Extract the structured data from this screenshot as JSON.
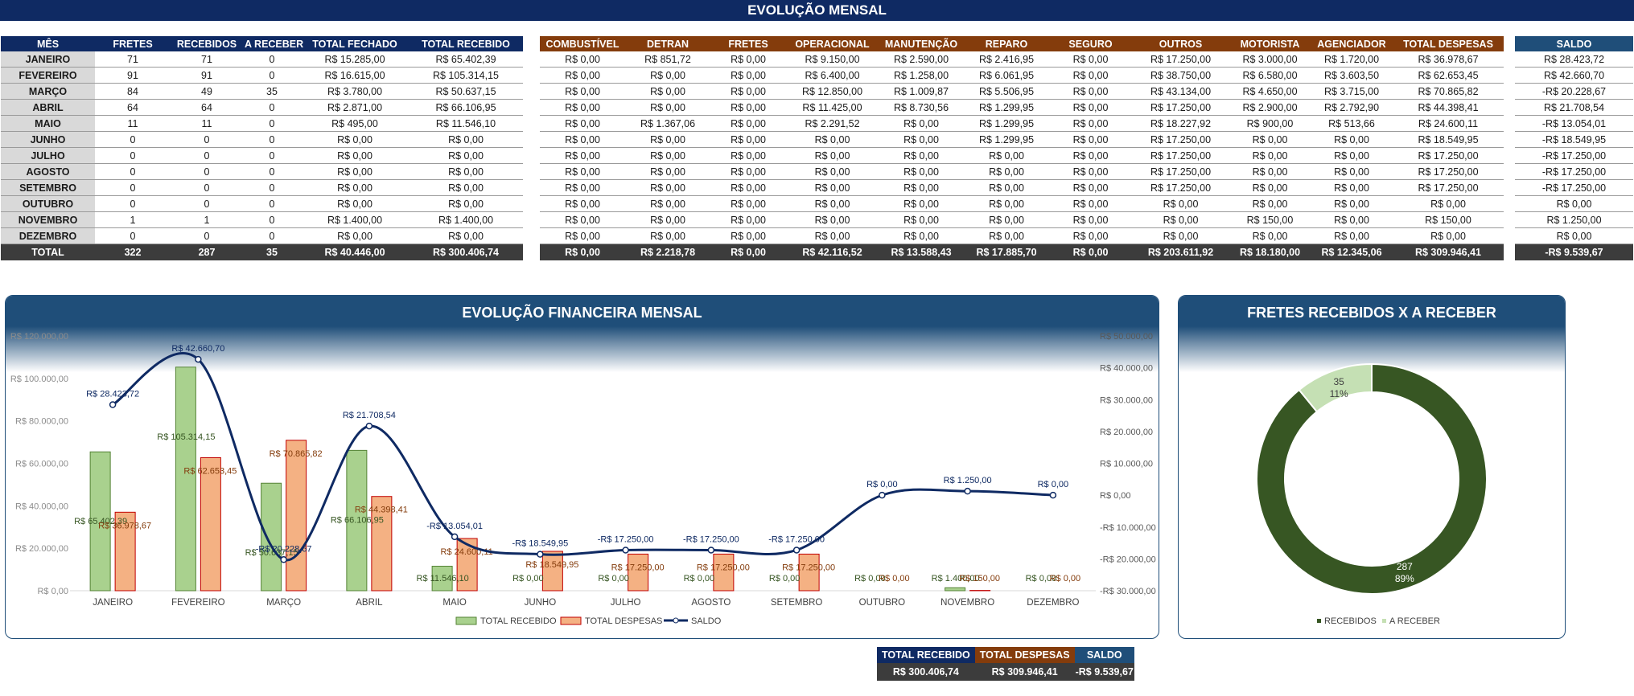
{
  "title": "EVOLUÇÃO MENSAL",
  "receitas": {
    "headers": [
      "MÊS",
      "FRETES",
      "RECEBIDOS",
      "A RECEBER",
      "TOTAL FECHADO",
      "TOTAL RECEBIDO"
    ],
    "rows": [
      [
        "JANEIRO",
        "71",
        "71",
        "0",
        "R$ 15.285,00",
        "R$ 65.402,39"
      ],
      [
        "FEVEREIRO",
        "91",
        "91",
        "0",
        "R$ 16.615,00",
        "R$ 105.314,15"
      ],
      [
        "MARÇO",
        "84",
        "49",
        "35",
        "R$ 3.780,00",
        "R$ 50.637,15"
      ],
      [
        "ABRIL",
        "64",
        "64",
        "0",
        "R$ 2.871,00",
        "R$ 66.106,95"
      ],
      [
        "MAIO",
        "11",
        "11",
        "0",
        "R$ 495,00",
        "R$ 11.546,10"
      ],
      [
        "JUNHO",
        "0",
        "0",
        "0",
        "R$ 0,00",
        "R$ 0,00"
      ],
      [
        "JULHO",
        "0",
        "0",
        "0",
        "R$ 0,00",
        "R$ 0,00"
      ],
      [
        "AGOSTO",
        "0",
        "0",
        "0",
        "R$ 0,00",
        "R$ 0,00"
      ],
      [
        "SETEMBRO",
        "0",
        "0",
        "0",
        "R$ 0,00",
        "R$ 0,00"
      ],
      [
        "OUTUBRO",
        "0",
        "0",
        "0",
        "R$ 0,00",
        "R$ 0,00"
      ],
      [
        "NOVEMBRO",
        "1",
        "1",
        "0",
        "R$ 1.400,00",
        "R$ 1.400,00"
      ],
      [
        "DEZEMBRO",
        "0",
        "0",
        "0",
        "R$ 0,00",
        "R$ 0,00"
      ]
    ],
    "total": [
      "TOTAL",
      "322",
      "287",
      "35",
      "R$ 40.446,00",
      "R$ 300.406,74"
    ]
  },
  "despesas": {
    "headers": [
      "COMBUSTÍVEL",
      "DETRAN",
      "FRETES",
      "OPERACIONAL",
      "MANUTENÇÃO",
      "REPARO",
      "SEGURO",
      "OUTROS",
      "MOTORISTA",
      "AGENCIADOR",
      "TOTAL DESPESAS"
    ],
    "rows": [
      [
        "R$ 0,00",
        "R$ 851,72",
        "R$ 0,00",
        "R$ 9.150,00",
        "R$ 2.590,00",
        "R$ 2.416,95",
        "R$ 0,00",
        "R$ 17.250,00",
        "R$ 3.000,00",
        "R$ 1.720,00",
        "R$ 36.978,67"
      ],
      [
        "R$ 0,00",
        "R$ 0,00",
        "R$ 0,00",
        "R$ 6.400,00",
        "R$ 1.258,00",
        "R$ 6.061,95",
        "R$ 0,00",
        "R$ 38.750,00",
        "R$ 6.580,00",
        "R$ 3.603,50",
        "R$ 62.653,45"
      ],
      [
        "R$ 0,00",
        "R$ 0,00",
        "R$ 0,00",
        "R$ 12.850,00",
        "R$ 1.009,87",
        "R$ 5.506,95",
        "R$ 0,00",
        "R$ 43.134,00",
        "R$ 4.650,00",
        "R$ 3.715,00",
        "R$ 70.865,82"
      ],
      [
        "R$ 0,00",
        "R$ 0,00",
        "R$ 0,00",
        "R$ 11.425,00",
        "R$ 8.730,56",
        "R$ 1.299,95",
        "R$ 0,00",
        "R$ 17.250,00",
        "R$ 2.900,00",
        "R$ 2.792,90",
        "R$ 44.398,41"
      ],
      [
        "R$ 0,00",
        "R$ 1.367,06",
        "R$ 0,00",
        "R$ 2.291,52",
        "R$ 0,00",
        "R$ 1.299,95",
        "R$ 0,00",
        "R$ 18.227,92",
        "R$ 900,00",
        "R$ 513,66",
        "R$ 24.600,11"
      ],
      [
        "R$ 0,00",
        "R$ 0,00",
        "R$ 0,00",
        "R$ 0,00",
        "R$ 0,00",
        "R$ 1.299,95",
        "R$ 0,00",
        "R$ 17.250,00",
        "R$ 0,00",
        "R$ 0,00",
        "R$ 18.549,95"
      ],
      [
        "R$ 0,00",
        "R$ 0,00",
        "R$ 0,00",
        "R$ 0,00",
        "R$ 0,00",
        "R$ 0,00",
        "R$ 0,00",
        "R$ 17.250,00",
        "R$ 0,00",
        "R$ 0,00",
        "R$ 17.250,00"
      ],
      [
        "R$ 0,00",
        "R$ 0,00",
        "R$ 0,00",
        "R$ 0,00",
        "R$ 0,00",
        "R$ 0,00",
        "R$ 0,00",
        "R$ 17.250,00",
        "R$ 0,00",
        "R$ 0,00",
        "R$ 17.250,00"
      ],
      [
        "R$ 0,00",
        "R$ 0,00",
        "R$ 0,00",
        "R$ 0,00",
        "R$ 0,00",
        "R$ 0,00",
        "R$ 0,00",
        "R$ 17.250,00",
        "R$ 0,00",
        "R$ 0,00",
        "R$ 17.250,00"
      ],
      [
        "R$ 0,00",
        "R$ 0,00",
        "R$ 0,00",
        "R$ 0,00",
        "R$ 0,00",
        "R$ 0,00",
        "R$ 0,00",
        "R$ 0,00",
        "R$ 0,00",
        "R$ 0,00",
        "R$ 0,00"
      ],
      [
        "R$ 0,00",
        "R$ 0,00",
        "R$ 0,00",
        "R$ 0,00",
        "R$ 0,00",
        "R$ 0,00",
        "R$ 0,00",
        "R$ 0,00",
        "R$ 150,00",
        "R$ 0,00",
        "R$ 150,00"
      ],
      [
        "R$ 0,00",
        "R$ 0,00",
        "R$ 0,00",
        "R$ 0,00",
        "R$ 0,00",
        "R$ 0,00",
        "R$ 0,00",
        "R$ 0,00",
        "R$ 0,00",
        "R$ 0,00",
        "R$ 0,00"
      ]
    ],
    "total": [
      "R$ 0,00",
      "R$ 2.218,78",
      "R$ 0,00",
      "R$ 42.116,52",
      "R$ 13.588,43",
      "R$ 17.885,70",
      "R$ 0,00",
      "R$ 203.611,92",
      "R$ 18.180,00",
      "R$ 12.345,06",
      "R$ 309.946,41"
    ]
  },
  "saldo": {
    "header": "SALDO",
    "rows": [
      "R$ 28.423,72",
      "R$ 42.660,70",
      "-R$ 20.228,67",
      "R$ 21.708,54",
      "-R$ 13.054,01",
      "-R$ 18.549,95",
      "-R$ 17.250,00",
      "-R$ 17.250,00",
      "-R$ 17.250,00",
      "R$ 0,00",
      "R$ 1.250,00",
      "R$ 0,00"
    ],
    "total": "-R$ 9.539,67"
  },
  "summary": {
    "headers": [
      "TOTAL RECEBIDO",
      "TOTAL DESPESAS",
      "SALDO"
    ],
    "values": [
      "R$ 300.406,74",
      "R$ 309.946,41",
      "-R$ 9.539,67"
    ]
  },
  "colors": {
    "navy": "#0f2a63",
    "brown": "#843c0c",
    "steel": "#1f4e79",
    "recebido_fill": "#a9d18e",
    "despesa_fill": "#f4b183",
    "saldo_line": "#0f2a63",
    "donut_dark": "#375623",
    "donut_light": "#c5e0b4"
  },
  "chart_data": [
    {
      "type": "bar",
      "title": "EVOLUÇÃO FINANCEIRA MENSAL",
      "categories": [
        "JANEIRO",
        "FEVEREIRO",
        "MARÇO",
        "ABRIL",
        "MAIO",
        "JUNHO",
        "JULHO",
        "AGOSTO",
        "SETEMBRO",
        "OUTUBRO",
        "NOVEMBRO",
        "DEZEMBRO"
      ],
      "series": [
        {
          "name": "TOTAL RECEBIDO",
          "kind": "bar",
          "axis": "left",
          "values": [
            65402.39,
            105314.15,
            50637.15,
            66106.95,
            11546.1,
            0,
            0,
            0,
            0,
            0,
            1400,
            0
          ],
          "labels": [
            "R$ 65.402,39",
            "R$ 105.314,15",
            "R$ 50.637,15",
            "R$ 66.106,95",
            "R$ 11.546,10",
            "R$ 0,00",
            "R$ 0,00",
            "R$ 0,00",
            "R$ 0,00",
            "R$ 0,00",
            "R$ 1.400,00",
            "R$ 0,00"
          ]
        },
        {
          "name": "TOTAL DESPESAS",
          "kind": "bar",
          "axis": "left",
          "values": [
            36978.67,
            62653.45,
            70865.82,
            44398.41,
            24600.11,
            18549.95,
            17250,
            17250,
            17250,
            0,
            150,
            0
          ],
          "labels": [
            "R$ 36.978,67",
            "R$ 62.653,45",
            "R$ 70.865,82",
            "R$ 44.398,41",
            "R$ 24.600,11",
            "R$ 18.549,95",
            "R$ 17.250,00",
            "R$ 17.250,00",
            "R$ 17.250,00",
            "R$ 0,00",
            "R$ 150,00",
            "R$ 0,00"
          ]
        },
        {
          "name": "SALDO",
          "kind": "line",
          "axis": "right",
          "values": [
            28423.72,
            42660.7,
            -20228.67,
            21708.54,
            -13054.01,
            -18549.95,
            -17250,
            -17250,
            -17250,
            0,
            1250,
            0
          ],
          "labels": [
            "R$ 28.423,72",
            "R$ 42.660,70",
            "-R$ 20.228,67",
            "R$ 21.708,54",
            "-R$ 13.054,01",
            "-R$ 18.549,95",
            "-R$ 17.250,00",
            "-R$ 17.250,00",
            "-R$ 17.250,00",
            "R$ 0,00",
            "R$ 1.250,00",
            "R$ 0,00"
          ]
        }
      ],
      "ylim_left": [
        0,
        120000
      ],
      "yticks_left": [
        "R$ 0,00",
        "R$ 20.000,00",
        "R$ 40.000,00",
        "R$ 60.000,00",
        "R$ 80.000,00",
        "R$ 100.000,00",
        "R$ 120.000,00"
      ],
      "ylim_right": [
        -30000,
        50000
      ],
      "yticks_right": [
        "-R$ 30.000,00",
        "-R$ 20.000,00",
        "-R$ 10.000,00",
        "R$ 0,00",
        "R$ 10.000,00",
        "R$ 20.000,00",
        "R$ 30.000,00",
        "R$ 40.000,00",
        "R$ 50.000,00"
      ],
      "legend": "bottom"
    },
    {
      "type": "pie",
      "title": "FRETES RECEBIDOS X A RECEBER",
      "categories": [
        "RECEBIDOS",
        "A RECEBER"
      ],
      "values": [
        287,
        35
      ],
      "value_labels": [
        "287",
        "35"
      ],
      "percent_labels": [
        "89%",
        "11%"
      ],
      "donut": true,
      "legend": "bottom"
    }
  ]
}
